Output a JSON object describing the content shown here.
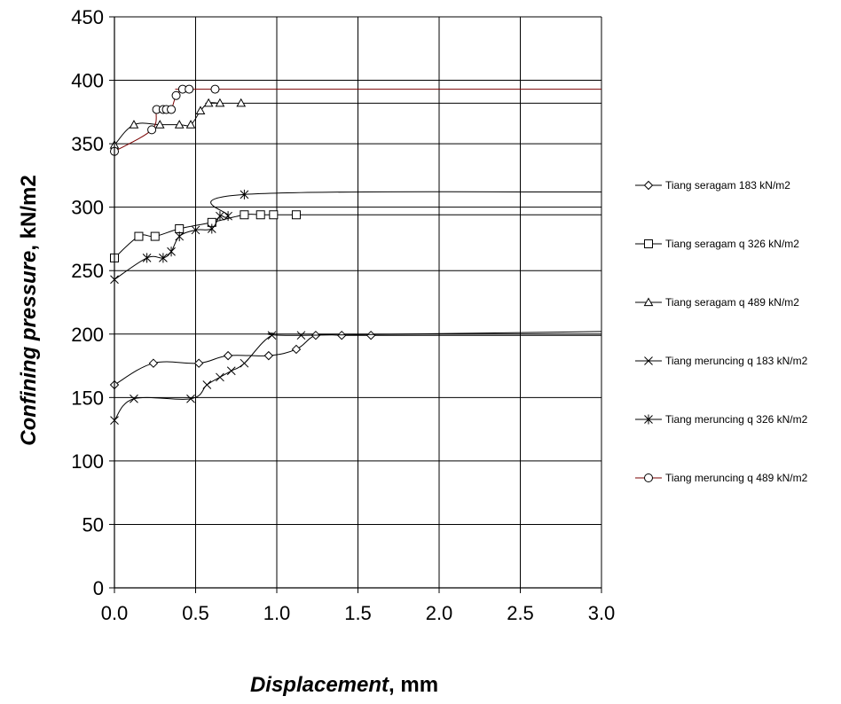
{
  "chart_data": {
    "type": "line",
    "xlabel_italic": "Displacement",
    "xlabel_rest": ", mm",
    "ylabel_italic": "Confining pressure",
    "ylabel_rest": ", kN/m2",
    "xlim": [
      0,
      3
    ],
    "ylim": [
      0,
      450
    ],
    "x_ticks": [
      "0.0",
      "0.5",
      "1.0",
      "1.5",
      "2.0",
      "2.5",
      "3.0"
    ],
    "y_ticks": [
      "0",
      "50",
      "100",
      "150",
      "200",
      "250",
      "300",
      "350",
      "400",
      "450"
    ],
    "grid": true,
    "legend_position": "right",
    "series": [
      {
        "name": "Tiang seragam 183 kN/m2",
        "marker": "diamond",
        "color": "#000000",
        "x": [
          0,
          0.24,
          0.52,
          0.7,
          0.95,
          1.12,
          1.24,
          1.4,
          1.58,
          3.0
        ],
        "y": [
          160,
          177,
          177,
          183,
          183,
          188,
          199,
          199,
          199,
          199
        ]
      },
      {
        "name": "Tiang seragam q 326 kN/m2",
        "marker": "square",
        "color": "#000000",
        "x": [
          0,
          0.15,
          0.25,
          0.4,
          0.6,
          0.8,
          0.9,
          0.98,
          1.12,
          3.0
        ],
        "y": [
          260,
          277,
          277,
          283,
          288,
          294,
          294,
          294,
          294,
          294
        ]
      },
      {
        "name": "Tiang seragam q 489 kN/m2",
        "marker": "triangle",
        "color": "#000000",
        "x": [
          0,
          0.12,
          0.28,
          0.4,
          0.47,
          0.53,
          0.58,
          0.65,
          0.78,
          3.0
        ],
        "y": [
          349,
          365,
          365,
          365,
          365,
          376,
          382,
          382,
          382,
          382
        ]
      },
      {
        "name": "Tiang merunciung q 183 kN/m2",
        "marker": "x",
        "color": "#000000",
        "x": [
          0,
          0.12,
          0.47,
          0.57,
          0.65,
          0.72,
          0.8,
          0.97,
          1.15,
          3.0
        ],
        "y": [
          132,
          149,
          149,
          160,
          166,
          171,
          177,
          199,
          199,
          202
        ]
      },
      {
        "name": "Tiang meruncing q 326 kN/m2",
        "marker": "star",
        "color": "#000000",
        "x": [
          0,
          0.2,
          0.3,
          0.35,
          0.4,
          0.5,
          0.6,
          0.65,
          0.7,
          0.8,
          3.0
        ],
        "y": [
          243,
          260,
          260,
          265,
          277,
          282,
          283,
          293,
          293,
          310,
          312
        ]
      },
      {
        "name": "Tiang meruncing q 489 kN/m2",
        "marker": "circle",
        "color": "#7a0000",
        "x": [
          0,
          0.23,
          0.26,
          0.3,
          0.32,
          0.35,
          0.38,
          0.42,
          0.46,
          0.62,
          3.0
        ],
        "y": [
          344,
          361,
          377,
          377,
          377,
          377,
          388,
          393,
          393,
          393,
          393
        ]
      }
    ],
    "legend_labels": [
      "Tiang seragam 183 kN/m2",
      "Tiang seragam q 326 kN/m2",
      "Tiang seragam q 489 kN/m2",
      "Tiang meruncing q 183 kN/m2",
      "Tiang meruncing q 326 kN/m2",
      "Tiang meruncing q 489 kN/m2"
    ]
  }
}
